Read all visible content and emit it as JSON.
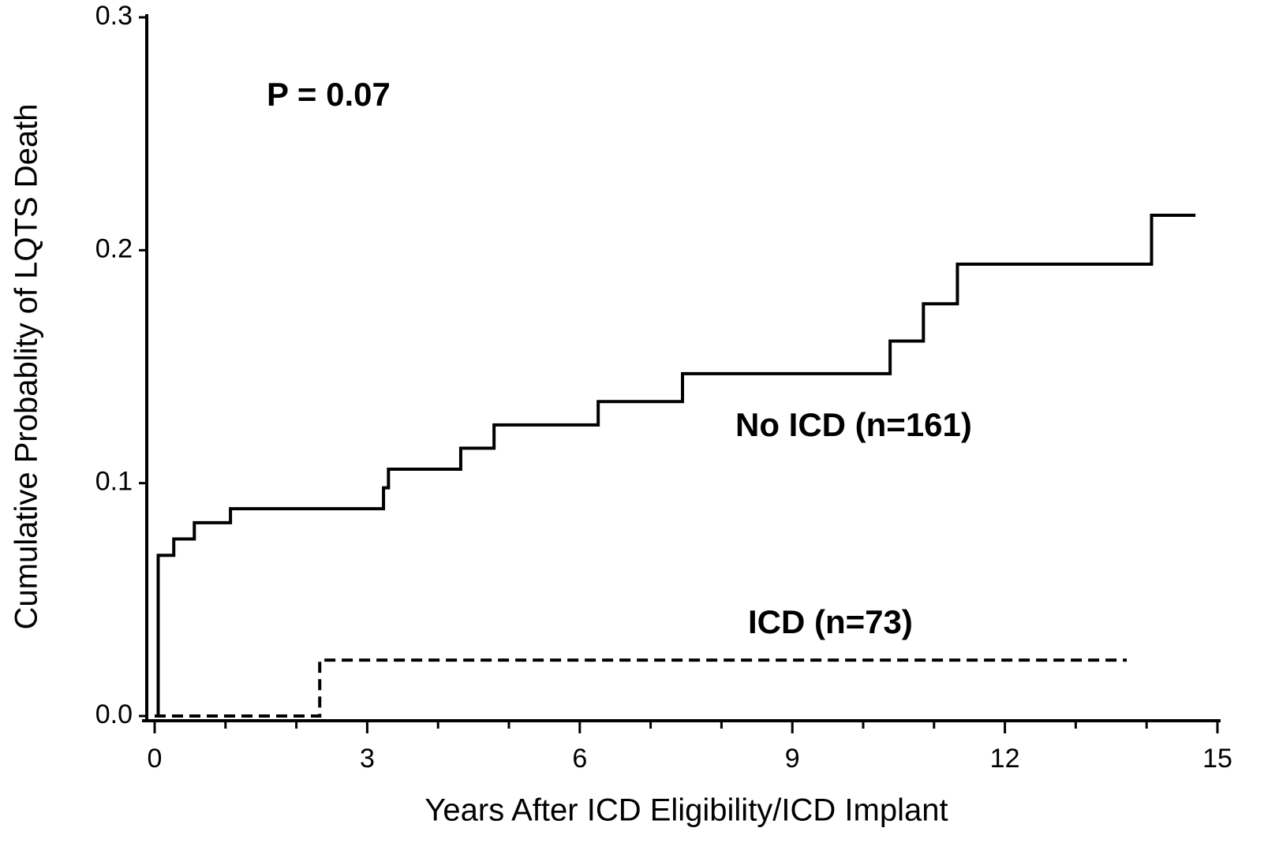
{
  "chart_data": {
    "type": "step",
    "xlabel": "Years After ICD Eligibility/ICD Implant",
    "ylabel": "Cumulative Probablity of LQTS Death",
    "annotations": [
      "P = 0.07"
    ],
    "xlim": [
      0,
      15
    ],
    "ylim": [
      0,
      0.3
    ],
    "xticks": [
      0,
      3,
      6,
      9,
      12,
      15
    ],
    "xminorticks": [
      1,
      2,
      4,
      5,
      7,
      8,
      10,
      11,
      13,
      14
    ],
    "yticks": [
      {
        "value": 0,
        "label": "0.0"
      },
      0.1,
      0.2,
      0.3
    ],
    "series": [
      {
        "name": "No ICD (n=161)",
        "color": "#000000",
        "style": "solid",
        "x": [
          0,
          0.05,
          0.27,
          0.56,
          1.07,
          3.23,
          3.3,
          4.32,
          4.79,
          6.26,
          7.45,
          10.38,
          10.85,
          11.33,
          14.07,
          14.69
        ],
        "values": [
          0,
          0.069,
          0.076,
          0.083,
          0.089,
          0.098,
          0.106,
          0.115,
          0.125,
          0.135,
          0.147,
          0.161,
          0.177,
          0.194,
          0.215,
          0.215
        ]
      },
      {
        "name": "ICD (n=73)",
        "color": "#000000",
        "style": "dashed",
        "x": [
          0,
          2.33,
          13.72
        ],
        "values": [
          0,
          0.024,
          0.024
        ]
      }
    ]
  }
}
